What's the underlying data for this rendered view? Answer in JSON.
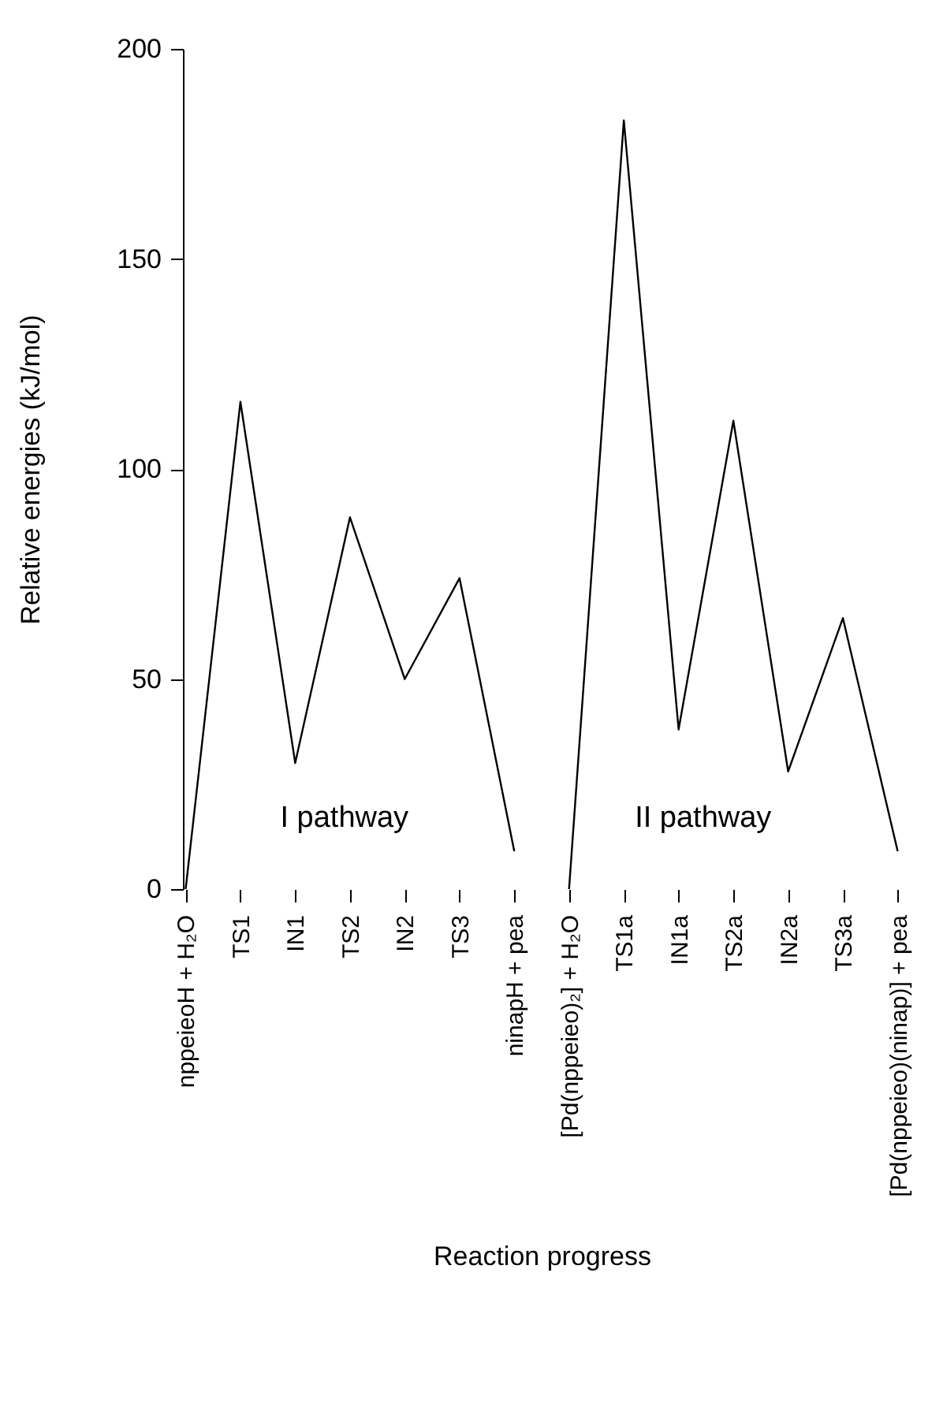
{
  "chart_data": {
    "type": "line",
    "xlabel": "Reaction progress",
    "ylabel": "Relative energies (kJ/mol)",
    "categories": [
      "nppeieoH + H₂O",
      "TS1",
      "IN1",
      "TS2",
      "IN2",
      "TS3",
      "ninapH + pea",
      "[Pd(nppeieo)₂] + H₂O",
      "TS1a",
      "IN1a",
      "TS2a",
      "IN2a",
      "TS3a",
      "[Pd(nppeieo)(ninap)] + pea"
    ],
    "series": [
      {
        "color": "#000000",
        "values": [
          0,
          116,
          30,
          88.5,
          50,
          74,
          9,
          null,
          null,
          null,
          null,
          null,
          null,
          null
        ]
      },
      {
        "color": "#000000",
        "values": [
          null,
          null,
          null,
          null,
          null,
          null,
          null,
          0,
          183,
          38,
          111.5,
          28,
          64.5,
          9
        ]
      }
    ],
    "annotations": [
      "I pathway",
      "II pathway"
    ],
    "ylim": [
      0,
      200
    ],
    "yticks": [
      0,
      50,
      100,
      150,
      200
    ],
    "grid": false,
    "marker": "none",
    "line_style": "solid"
  }
}
